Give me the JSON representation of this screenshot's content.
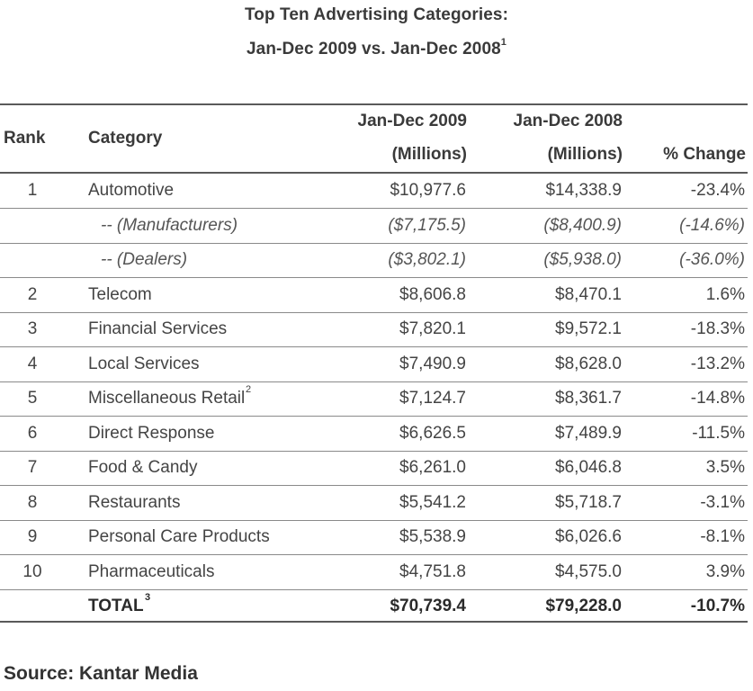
{
  "title": {
    "line1": "Top Ten Advertising Categories:",
    "line2": "Jan-Dec 2009 vs. Jan-Dec 2008",
    "line2_sup": "1"
  },
  "header": {
    "rank": "Rank",
    "category": "Category",
    "col2009_line1": "Jan-Dec 2009",
    "col2009_line2": "(Millions)",
    "col2008_line1": "Jan-Dec 2008",
    "col2008_line2": "(Millions)",
    "change": "% Change"
  },
  "rows": [
    {
      "rank": "1",
      "category": "Automotive",
      "sup": "",
      "v2009": "$10,977.6",
      "v2008": "$14,338.9",
      "change": "-23.4%",
      "style": "normal"
    },
    {
      "rank": "",
      "category": "-- (Manufacturers)",
      "sup": "",
      "v2009": "($7,175.5)",
      "v2008": "($8,400.9)",
      "change": "(-14.6%)",
      "style": "sub"
    },
    {
      "rank": "",
      "category": "-- (Dealers)",
      "sup": "",
      "v2009": "($3,802.1)",
      "v2008": "($5,938.0)",
      "change": "(-36.0%)",
      "style": "sub"
    },
    {
      "rank": "2",
      "category": "Telecom",
      "sup": "",
      "v2009": "$8,606.8",
      "v2008": "$8,470.1",
      "change": "1.6%",
      "style": "normal"
    },
    {
      "rank": "3",
      "category": "Financial Services",
      "sup": "",
      "v2009": "$7,820.1",
      "v2008": "$9,572.1",
      "change": "-18.3%",
      "style": "normal"
    },
    {
      "rank": "4",
      "category": "Local Services",
      "sup": "",
      "v2009": "$7,490.9",
      "v2008": "$8,628.0",
      "change": "-13.2%",
      "style": "normal"
    },
    {
      "rank": "5",
      "category": "Miscellaneous Retail",
      "sup": "2",
      "v2009": "$7,124.7",
      "v2008": "$8,361.7",
      "change": "-14.8%",
      "style": "normal"
    },
    {
      "rank": "6",
      "category": "Direct Response",
      "sup": "",
      "v2009": "$6,626.5",
      "v2008": "$7,489.9",
      "change": "-11.5%",
      "style": "normal"
    },
    {
      "rank": "7",
      "category": "Food & Candy",
      "sup": "",
      "v2009": "$6,261.0",
      "v2008": "$6,046.8",
      "change": "3.5%",
      "style": "normal"
    },
    {
      "rank": "8",
      "category": "Restaurants",
      "sup": "",
      "v2009": "$5,541.2",
      "v2008": "$5,718.7",
      "change": "-3.1%",
      "style": "normal"
    },
    {
      "rank": "9",
      "category": "Personal Care Products",
      "sup": "",
      "v2009": "$5,538.9",
      "v2008": "$6,026.6",
      "change": "-8.1%",
      "style": "normal"
    },
    {
      "rank": "10",
      "category": "Pharmaceuticals",
      "sup": "",
      "v2009": "$4,751.8",
      "v2008": "$4,575.0",
      "change": "3.9%",
      "style": "normal"
    },
    {
      "rank": "",
      "category": "TOTAL",
      "sup": "3",
      "v2009": "$70,739.4",
      "v2008": "$79,228.0",
      "change": "-10.7%",
      "style": "total"
    }
  ],
  "source": "Source: Kantar Media"
}
